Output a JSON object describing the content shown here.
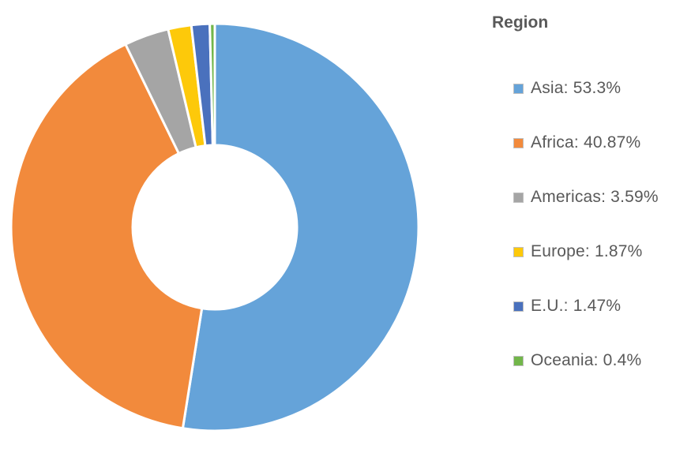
{
  "chart_data": {
    "type": "pie",
    "variant": "donut",
    "legend_title": "Region",
    "legend_position": "right",
    "categories": [
      "Asia",
      "Africa",
      "Americas",
      "Europe",
      "E.U.",
      "Oceania"
    ],
    "values": [
      53.3,
      40.87,
      3.59,
      1.87,
      1.47,
      0.4
    ],
    "legend_labels": [
      "Asia: 53.3%",
      "Africa: 40.87%",
      "Americas: 3.59%",
      "Europe: 1.87%",
      "E.U.: 1.47%",
      "Oceania: 0.4%"
    ],
    "colors": [
      "#65a3d9",
      "#f28a3c",
      "#a5a5a5",
      "#fdc90a",
      "#4a71bd",
      "#72b64a"
    ]
  }
}
